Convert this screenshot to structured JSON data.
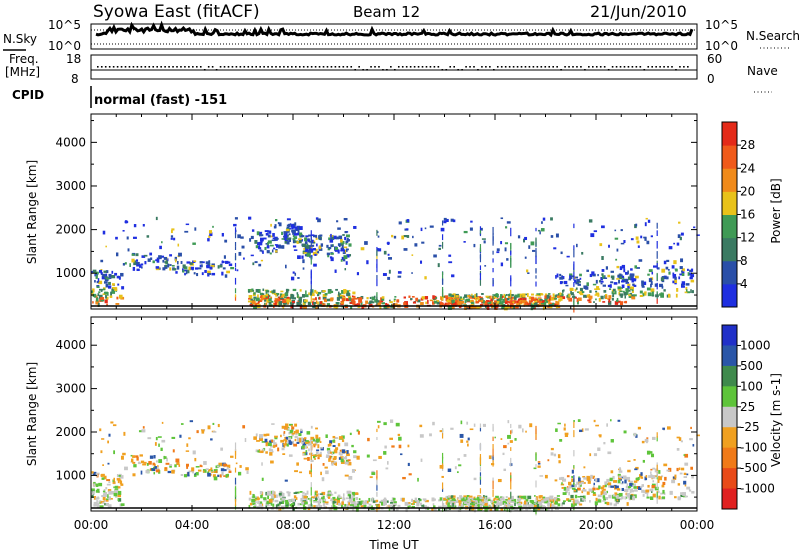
{
  "header": {
    "station": "Syowa East (fitACF)",
    "beam": "Beam 12",
    "date": "21/Jun/2010"
  },
  "noise_panel": {
    "left_label": "N.Sky",
    "right_label": "N.Search",
    "left_ticks": [
      "10^5",
      "10^0"
    ],
    "right_ticks": [
      "10^5",
      "10^0"
    ]
  },
  "freq_panel": {
    "left_label_1": "Freq.",
    "left_label_2": "[MHz]",
    "left_ticks": [
      "18",
      "8"
    ],
    "right_label": "Nave",
    "right_ticks": [
      "60",
      "0"
    ]
  },
  "cpid": {
    "label": "CPID",
    "value": "normal (fast) -151"
  },
  "colors": {
    "power_scale": [
      "#1f2fe0",
      "#2a4fa8",
      "#3a7a62",
      "#3f9a55",
      "#e8c21a",
      "#f08a1a",
      "#f05a1a",
      "#e42a18"
    ],
    "velocity_scale": [
      "#2030c8",
      "#2a56a8",
      "#3f8a4c",
      "#5ec43a",
      "#c8c8c8",
      "#f0a020",
      "#f07a18",
      "#e84a18",
      "#e02020"
    ]
  },
  "chart_data": [
    {
      "type": "heatmap",
      "title": "",
      "xlabel": "",
      "ylabel": "Slant Range [km]",
      "x_ticks": [
        "00:00",
        "04:00",
        "08:00",
        "12:00",
        "16:00",
        "20:00",
        "00:00"
      ],
      "xlim": [
        0,
        24
      ],
      "y_ticks": [
        "1000",
        "2000",
        "3000",
        "4000"
      ],
      "ylim": [
        180,
        4650
      ],
      "colorbar": {
        "label": "Power [dB]",
        "ticks": [
          "4",
          "8",
          "12",
          "16",
          "20",
          "24",
          "28"
        ],
        "range": [
          0,
          30
        ]
      }
    },
    {
      "type": "heatmap",
      "title": "",
      "xlabel": "Time UT",
      "ylabel": "Slant Range [km]",
      "x_ticks": [
        "00:00",
        "04:00",
        "08:00",
        "12:00",
        "16:00",
        "20:00",
        "00:00"
      ],
      "xlim": [
        0,
        24
      ],
      "y_ticks": [
        "1000",
        "2000",
        "3000",
        "4000"
      ],
      "ylim": [
        180,
        4650
      ],
      "colorbar": {
        "label": "Velocity [m s-1]",
        "ticks": [
          "1000",
          "500",
          "100",
          "25",
          "-25",
          "-100",
          "-500",
          "-1000"
        ]
      }
    }
  ]
}
